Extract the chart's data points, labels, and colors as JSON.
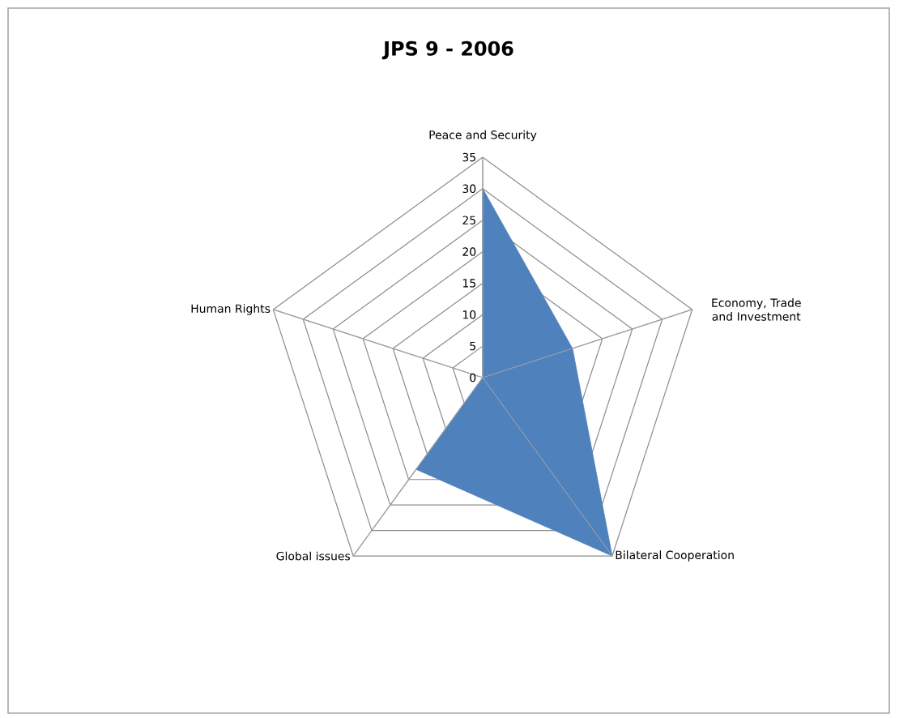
{
  "chart_data": {
    "type": "radar",
    "title": "JPS 9 - 2006",
    "categories": [
      "Peace and Security",
      "Economy, Trade and Investment",
      "Bilateral Cooperation",
      "Global issues",
      "Human Rights"
    ],
    "series": [
      {
        "color": "#4f81bd",
        "values": [
          30,
          15,
          35,
          18,
          0
        ]
      }
    ],
    "ylim": [
      0,
      35
    ],
    "yticks": [
      0,
      5,
      10,
      15,
      20,
      25,
      30,
      35
    ],
    "grid": true
  }
}
